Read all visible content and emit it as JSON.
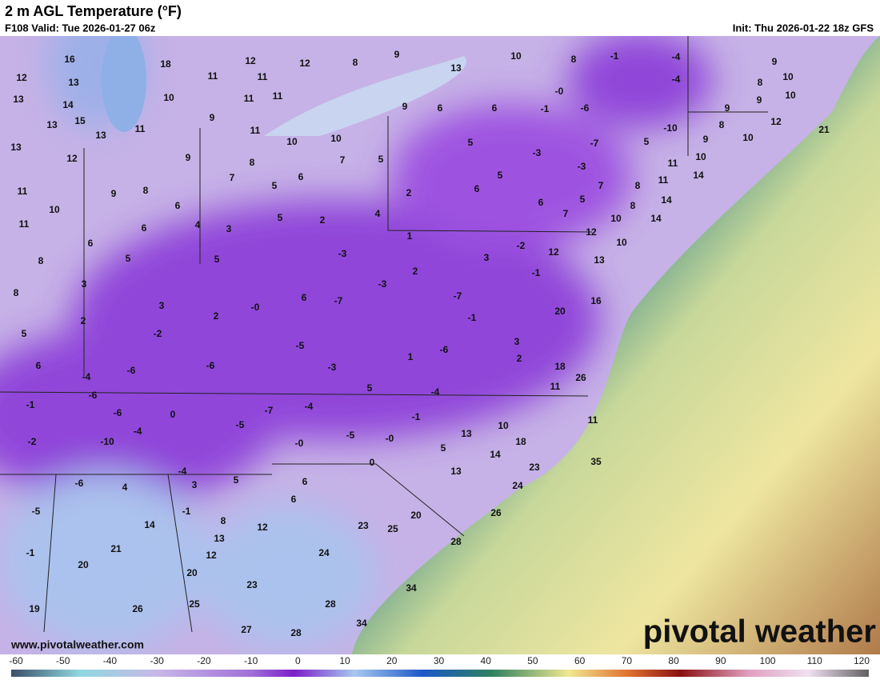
{
  "header": {
    "title": "2 m AGL Temperature (°F)",
    "valid": "F108 Valid: Tue 2026-01-27 06z",
    "init": "Init: Thu 2026-01-22 18z GFS"
  },
  "map": {
    "labels": [
      16,
      18,
      12,
      12,
      8,
      9,
      10,
      8,
      -1,
      -4,
      9,
      12,
      13,
      11,
      11,
      13,
      -4,
      8,
      10,
      13,
      10,
      11,
      11,
      "-0",
      9,
      9,
      10,
      14,
      15,
      9,
      9,
      6,
      6,
      -1,
      -6,
      13,
      13,
      11,
      11,
      10,
      10,
      -10,
      8,
      12,
      21,
      13,
      9,
      8,
      7,
      5,
      5,
      -3,
      -7,
      5,
      9,
      10,
      10,
      12,
      7,
      6,
      2,
      5,
      6,
      -3,
      11,
      14,
      11,
      9,
      8,
      5,
      6,
      7,
      8,
      11,
      14,
      10,
      6,
      5,
      2,
      4,
      7,
      5,
      8,
      11,
      6,
      4,
      3,
      1,
      10,
      14,
      6,
      8,
      5,
      5,
      -3,
      3,
      -2,
      12,
      10,
      12,
      13,
      3,
      2,
      -3,
      -1,
      8,
      6,
      -7,
      "-0",
      -7,
      3,
      16,
      20,
      2,
      2,
      -1,
      5,
      -2,
      -5,
      -6,
      3,
      2,
      18,
      26,
      1,
      6,
      -6,
      -6,
      -3,
      -4,
      5,
      11,
      -4,
      -6,
      -1,
      -7,
      -4,
      -6,
      0,
      -1,
      10,
      11,
      -5,
      -4,
      -5,
      13,
      -2,
      -10,
      "-0",
      "-0",
      18,
      5,
      14,
      35,
      23,
      0,
      13,
      -4,
      -6,
      4,
      3,
      5,
      6,
      24,
      6,
      -5,
      -1,
      26,
      20,
      14,
      8,
      12,
      23,
      25,
      21,
      13,
      28,
      -1,
      12,
      24,
      20,
      20,
      23,
      34,
      19,
      26,
      25,
      28,
      34,
      27,
      28
    ]
  },
  "footer": {
    "website": "www.pivotalweather.com",
    "brand": "pivotal weather"
  },
  "colorbar": {
    "ticks": [
      -60,
      -50,
      -40,
      -30,
      -20,
      -10,
      0,
      10,
      20,
      30,
      40,
      50,
      60,
      70,
      80,
      90,
      100,
      110,
      120
    ]
  }
}
